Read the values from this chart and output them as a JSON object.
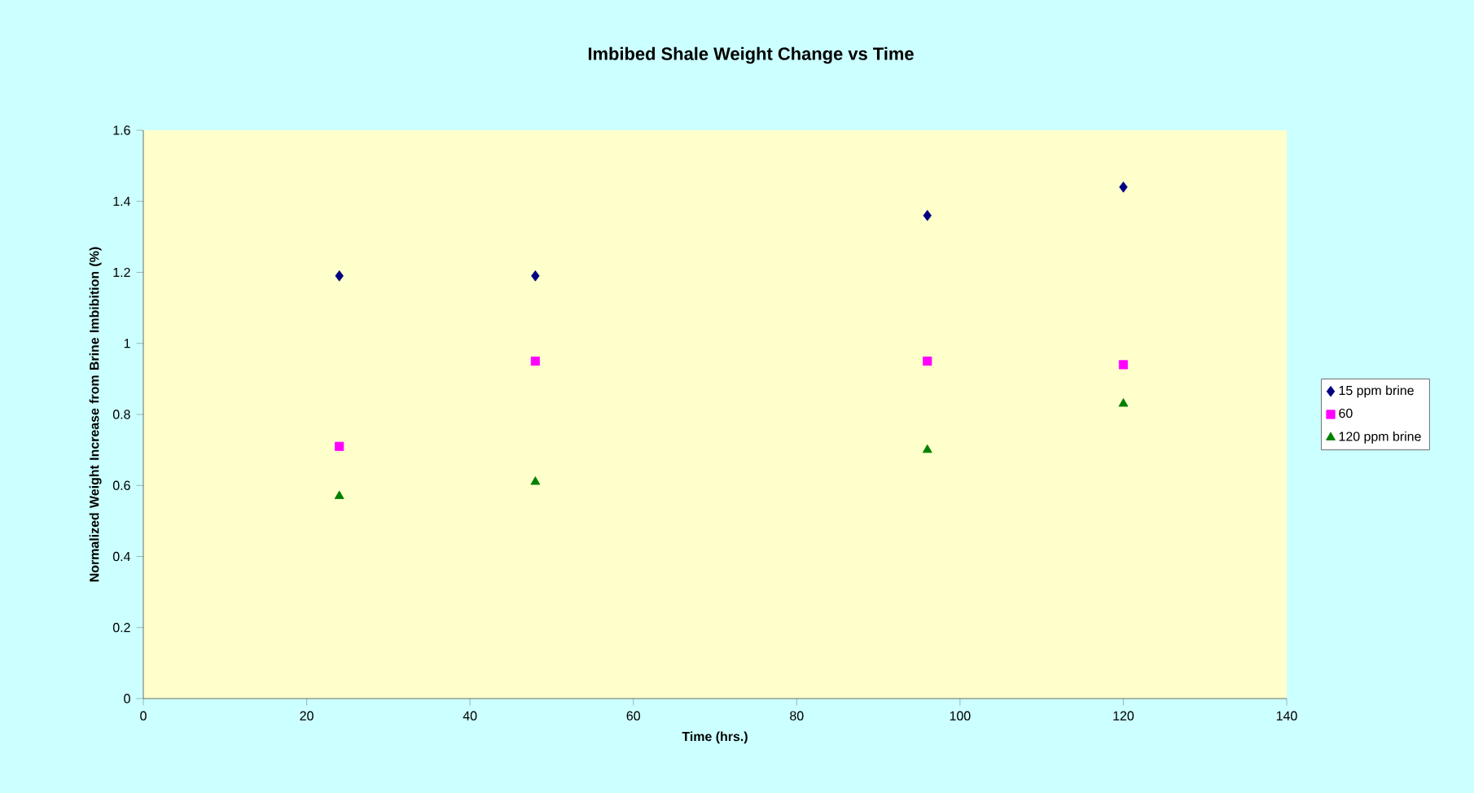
{
  "chart_data": {
    "type": "scatter",
    "title": "Imbibed Shale Weight Change vs Time",
    "xlabel": "Time (hrs.)",
    "ylabel": "Normalized Weight Increase from Brine Imbibition (%)",
    "x": [
      24,
      48,
      96,
      120
    ],
    "series": [
      {
        "name": "15 ppm brine",
        "color": "#000080",
        "marker": "diamond",
        "values": [
          1.19,
          1.19,
          1.36,
          1.44
        ]
      },
      {
        "name": "60",
        "color": "#ff00ff",
        "marker": "square",
        "values": [
          0.71,
          0.95,
          0.95,
          0.94
        ]
      },
      {
        "name": "120 ppm brine",
        "color": "#008000",
        "marker": "triangle",
        "values": [
          0.57,
          0.61,
          0.7,
          0.83
        ]
      }
    ],
    "xlim": [
      0,
      140
    ],
    "xticks": [
      0,
      20,
      40,
      60,
      80,
      100,
      120,
      140
    ],
    "ylim": [
      0,
      1.6
    ],
    "yticks": [
      0,
      0.2,
      0.4,
      0.6,
      0.8,
      1,
      1.2,
      1.4,
      1.6
    ],
    "grid": false,
    "legend": "right"
  }
}
